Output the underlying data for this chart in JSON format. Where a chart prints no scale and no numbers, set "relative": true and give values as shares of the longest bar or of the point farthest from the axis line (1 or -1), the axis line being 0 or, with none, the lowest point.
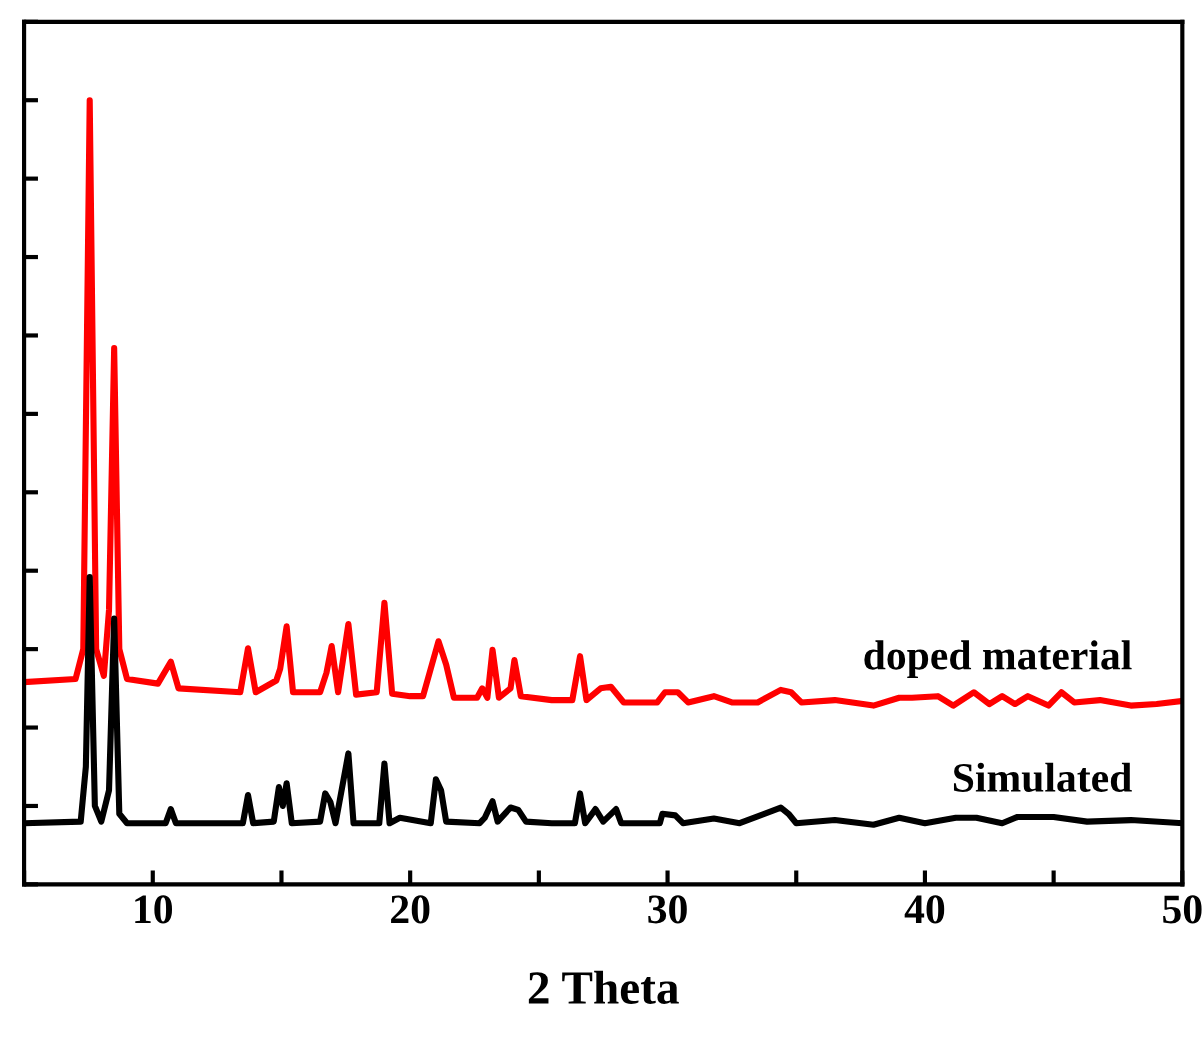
{
  "chart_data": {
    "type": "line",
    "xlabel": "2 Theta",
    "relative": true,
    "tick_labels": "x",
    "legend": false,
    "grid": false,
    "xlim": [
      5,
      50
    ],
    "xticks": [
      {
        "value": 5,
        "label": null
      },
      10,
      {
        "value": 15,
        "label": null
      },
      20,
      {
        "value": 25,
        "label": null
      },
      30,
      {
        "value": 35,
        "label": null
      },
      40,
      {
        "value": 45,
        "label": null
      },
      50
    ],
    "series": [
      {
        "name": "doped material",
        "color": "#ff0000",
        "x": [
          5.0,
          7.0,
          7.3,
          7.55,
          7.8,
          8.1,
          8.3,
          8.5,
          8.7,
          9.0,
          10.2,
          10.7,
          11.0,
          13.4,
          13.7,
          14.0,
          14.8,
          14.95,
          15.2,
          15.45,
          16.5,
          16.75,
          16.95,
          17.2,
          17.6,
          17.9,
          18.7,
          19.0,
          19.3,
          20.0,
          20.5,
          21.1,
          21.4,
          21.7,
          22.6,
          22.8,
          23.0,
          23.2,
          23.45,
          23.9,
          24.05,
          24.3,
          25.5,
          26.3,
          26.6,
          26.85,
          27.4,
          27.8,
          28.3,
          29.6,
          29.9,
          30.4,
          30.8,
          31.8,
          32.5,
          33.5,
          34.4,
          34.8,
          35.2,
          36.5,
          38.0,
          39.0,
          39.5,
          40.5,
          41.1,
          41.9,
          42.5,
          43.0,
          43.5,
          44.0,
          44.8,
          45.3,
          45.8,
          46.8,
          48.0,
          49.0,
          50.0
        ],
        "values": [
          0.258,
          0.262,
          0.3,
          1.0,
          0.3,
          0.266,
          0.35,
          0.684,
          0.3,
          0.262,
          0.256,
          0.284,
          0.25,
          0.245,
          0.301,
          0.245,
          0.26,
          0.275,
          0.329,
          0.245,
          0.245,
          0.27,
          0.304,
          0.245,
          0.332,
          0.242,
          0.245,
          0.359,
          0.243,
          0.24,
          0.24,
          0.31,
          0.28,
          0.238,
          0.238,
          0.25,
          0.238,
          0.299,
          0.238,
          0.25,
          0.286,
          0.24,
          0.235,
          0.235,
          0.291,
          0.235,
          0.25,
          0.252,
          0.232,
          0.232,
          0.245,
          0.245,
          0.232,
          0.24,
          0.232,
          0.232,
          0.248,
          0.245,
          0.232,
          0.235,
          0.228,
          0.238,
          0.238,
          0.24,
          0.228,
          0.245,
          0.23,
          0.24,
          0.23,
          0.24,
          0.228,
          0.245,
          0.232,
          0.235,
          0.228,
          0.23,
          0.234
        ]
      },
      {
        "name": "Simulated",
        "color": "#000000",
        "x": [
          5.0,
          7.2,
          7.4,
          7.55,
          7.75,
          8.0,
          8.3,
          8.5,
          8.7,
          9.0,
          10.5,
          10.7,
          10.9,
          13.5,
          13.7,
          13.9,
          14.7,
          14.9,
          15.05,
          15.2,
          15.4,
          16.5,
          16.7,
          16.9,
          17.1,
          17.6,
          17.8,
          18.8,
          19.0,
          19.2,
          19.6,
          20.8,
          21.0,
          21.2,
          21.4,
          22.7,
          22.9,
          23.2,
          23.4,
          23.9,
          24.2,
          24.5,
          25.5,
          26.4,
          26.6,
          26.8,
          27.2,
          27.5,
          28.0,
          28.2,
          29.7,
          29.8,
          30.3,
          30.6,
          31.8,
          32.8,
          34.4,
          34.7,
          35.0,
          36.5,
          38.0,
          39.0,
          40.0,
          41.2,
          42.0,
          43.0,
          43.6,
          45.0,
          46.3,
          48.0,
          50.0
        ],
        "values": [
          0.078,
          0.08,
          0.15,
          0.392,
          0.1,
          0.08,
          0.12,
          0.339,
          0.09,
          0.078,
          0.078,
          0.096,
          0.078,
          0.078,
          0.114,
          0.078,
          0.08,
          0.124,
          0.1,
          0.129,
          0.078,
          0.08,
          0.116,
          0.105,
          0.078,
          0.167,
          0.078,
          0.078,
          0.154,
          0.078,
          0.085,
          0.078,
          0.134,
          0.12,
          0.08,
          0.078,
          0.085,
          0.106,
          0.08,
          0.098,
          0.095,
          0.08,
          0.078,
          0.078,
          0.116,
          0.078,
          0.096,
          0.08,
          0.096,
          0.078,
          0.078,
          0.09,
          0.088,
          0.078,
          0.084,
          0.078,
          0.098,
          0.09,
          0.078,
          0.082,
          0.076,
          0.085,
          0.078,
          0.085,
          0.085,
          0.078,
          0.086,
          0.086,
          0.08,
          0.082,
          0.078
        ]
      }
    ]
  }
}
